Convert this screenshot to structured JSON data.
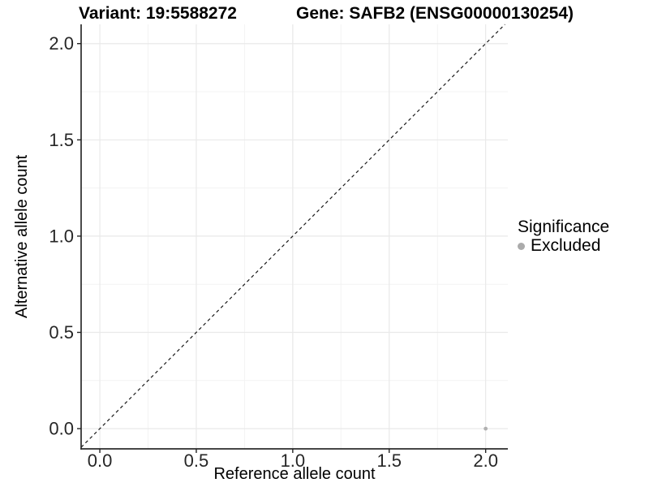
{
  "figure": {
    "title_left": "Variant: 19:5588272",
    "title_right": "Gene: SAFB2 (ENSG00000130254)"
  },
  "legend": {
    "title": "Significance",
    "items": [
      {
        "label": "Excluded",
        "color": "#ababab"
      }
    ]
  },
  "chart_data": {
    "type": "scatter",
    "title": "Variant: 19:5588272   Gene: SAFB2 (ENSG00000130254)",
    "xlabel": "Reference allele count",
    "ylabel": "Alternative allele count",
    "xlim": [
      0,
      2
    ],
    "ylim": [
      0,
      2
    ],
    "x_ticks": [
      0.0,
      0.5,
      1.0,
      1.5,
      2.0
    ],
    "y_ticks": [
      0.0,
      0.5,
      1.0,
      1.5,
      2.0
    ],
    "x_tick_labels": [
      "0.0",
      "0.5",
      "1.0",
      "1.5",
      "2.0"
    ],
    "y_tick_labels": [
      "0.0",
      "0.5",
      "1.0",
      "1.5",
      "2.0"
    ],
    "minor_tick_positions": [
      0.25,
      0.75,
      1.25,
      1.75
    ],
    "grid": true,
    "legend_position": "right",
    "series": [
      {
        "name": "Excluded",
        "color": "#b0b0b0",
        "points": [
          {
            "x": 2.0,
            "y": 0.0
          }
        ]
      }
    ],
    "reference_line": {
      "style": "dashed",
      "slope": 1,
      "intercept": 0,
      "color": "#1a1a1a"
    }
  },
  "colors": {
    "grid_major": "#e9e9e9",
    "grid_minor": "#f3f3f3",
    "axis_line": "#2b2b2b",
    "tick_mark": "#222222",
    "tick_text": "#262626",
    "point": "#b0b0b0",
    "ref_line": "#1a1a1a"
  }
}
